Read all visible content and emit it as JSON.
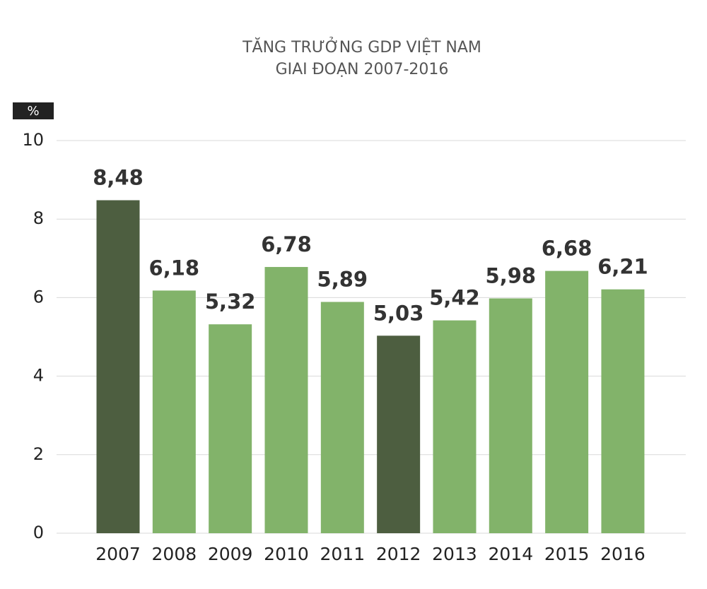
{
  "chart_data": {
    "type": "bar",
    "title": [
      "TĂNG TRƯỞNG GDP VIỆT NAM",
      "GIAI ĐOẠN 2007-2016"
    ],
    "y_unit": "%",
    "categories": [
      "2007",
      "2008",
      "2009",
      "2010",
      "2011",
      "2012",
      "2013",
      "2014",
      "2015",
      "2016"
    ],
    "values": [
      8.48,
      6.18,
      5.32,
      6.78,
      5.89,
      5.03,
      5.42,
      5.98,
      6.68,
      6.21
    ],
    "value_labels": [
      "8,48",
      "6,18",
      "5,32",
      "6,78",
      "5,89",
      "5,03",
      "5,42",
      "5,98",
      "6,68",
      "6,21"
    ],
    "colors": [
      "#4d5e40",
      "#82b36a",
      "#82b36a",
      "#82b36a",
      "#82b36a",
      "#4d5e40",
      "#82b36a",
      "#82b36a",
      "#82b36a",
      "#82b36a"
    ],
    "ylim": [
      0,
      10
    ],
    "yticks": [
      0,
      2,
      4,
      6,
      8,
      10
    ],
    "grid": true
  }
}
